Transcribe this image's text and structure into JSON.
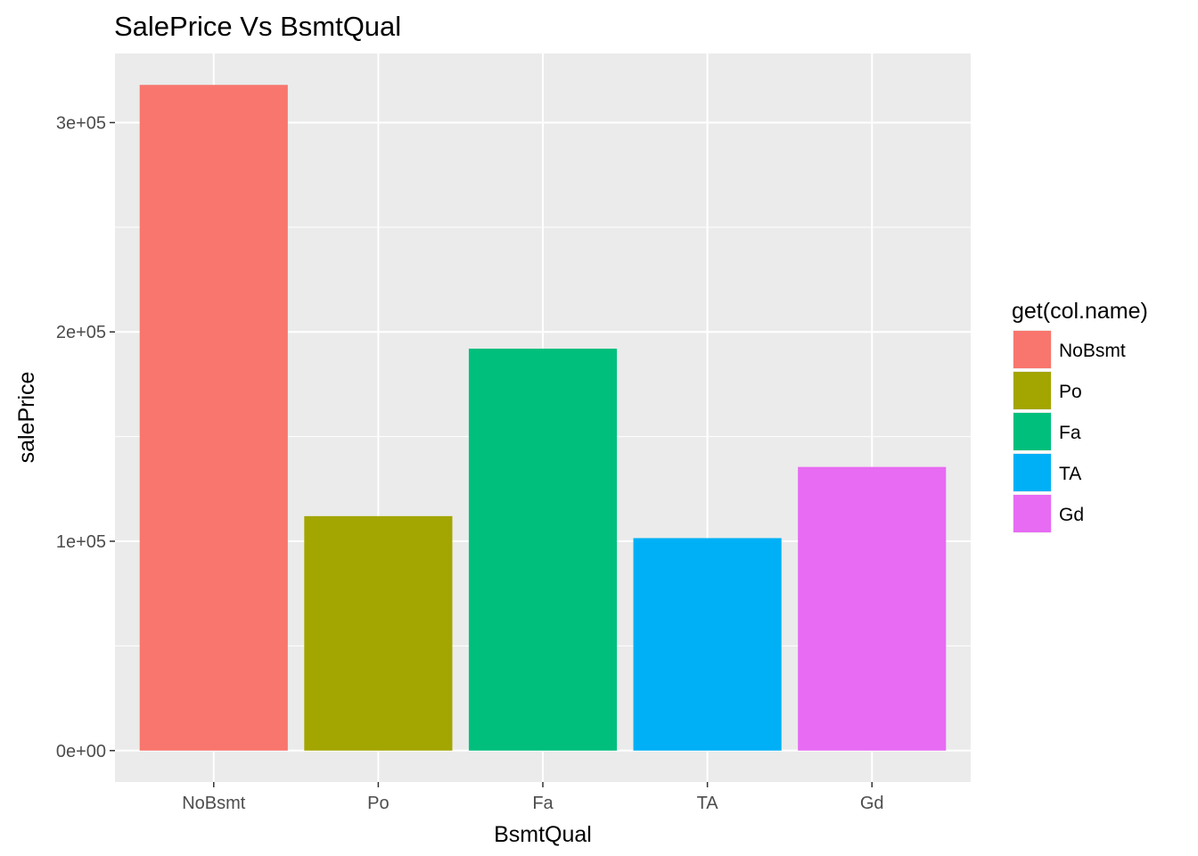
{
  "chart_data": {
    "type": "bar",
    "title": "SalePrice Vs BsmtQual",
    "xlabel": "BsmtQual",
    "ylabel": "salePrice",
    "categories": [
      "NoBsmt",
      "Po",
      "Fa",
      "TA",
      "Gd"
    ],
    "values": [
      318000,
      112000,
      192000,
      101500,
      135500
    ],
    "colors": [
      "#F8766D",
      "#A3A500",
      "#00BF7D",
      "#00B0F6",
      "#E76BF3"
    ],
    "y_ticks": [
      0,
      100000,
      200000,
      300000
    ],
    "y_tick_labels": [
      "0e+00",
      "1e+05",
      "2e+05",
      "3e+05"
    ],
    "ylim": [
      -15000,
      333000
    ],
    "grid": true,
    "panel_background": "#EBEBEB",
    "legend": {
      "title": "get(col.name)",
      "position": "right",
      "entries": [
        "NoBsmt",
        "Po",
        "Fa",
        "TA",
        "Gd"
      ]
    }
  }
}
